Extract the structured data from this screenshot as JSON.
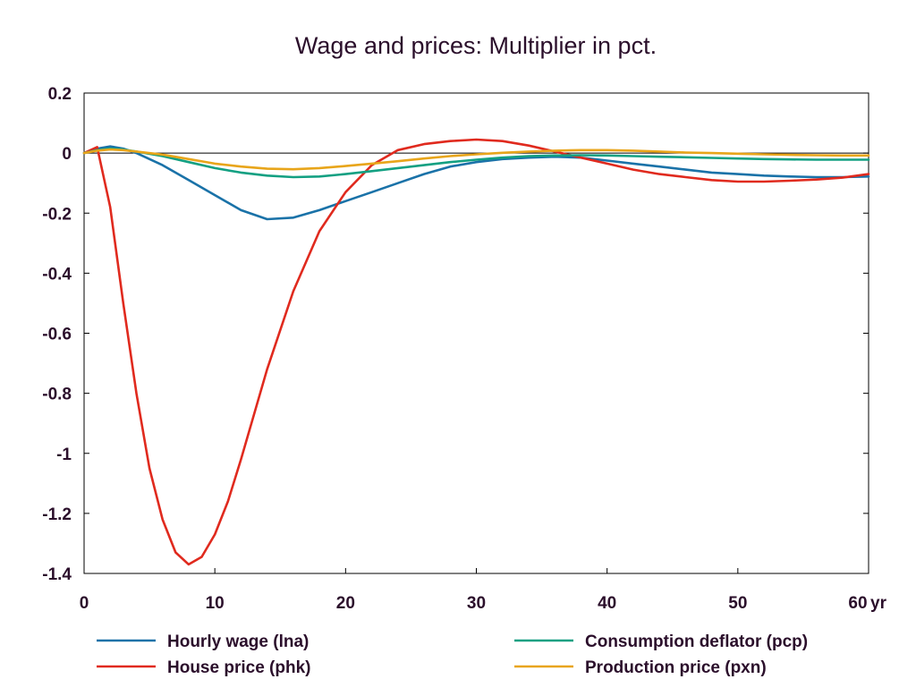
{
  "chart_data": {
    "type": "line",
    "title": "Wage and prices: Multiplier in pct.",
    "xlabel": "",
    "ylabel": "",
    "x_unit": "yr",
    "xlim": [
      0,
      60
    ],
    "ylim": [
      -1.4,
      0.2
    ],
    "xticks": [
      0,
      10,
      20,
      30,
      40,
      50,
      60
    ],
    "yticks": [
      0.2,
      0,
      -0.2,
      -0.4,
      -0.6,
      -0.8,
      -1,
      -1.2,
      -1.4
    ],
    "grid": false,
    "zero_line": true,
    "legend_position": "bottom",
    "series": [
      {
        "name": "Hourly wage (lna)",
        "color": "#1a72a8",
        "points": [
          [
            0,
            0
          ],
          [
            1,
            0.015
          ],
          [
            2,
            0.022
          ],
          [
            3,
            0.015
          ],
          [
            4,
            0
          ],
          [
            6,
            -0.04
          ],
          [
            8,
            -0.09
          ],
          [
            10,
            -0.14
          ],
          [
            12,
            -0.19
          ],
          [
            14,
            -0.22
          ],
          [
            16,
            -0.215
          ],
          [
            18,
            -0.19
          ],
          [
            20,
            -0.16
          ],
          [
            22,
            -0.13
          ],
          [
            24,
            -0.1
          ],
          [
            26,
            -0.07
          ],
          [
            28,
            -0.045
          ],
          [
            30,
            -0.03
          ],
          [
            32,
            -0.02
          ],
          [
            34,
            -0.015
          ],
          [
            36,
            -0.012
          ],
          [
            38,
            -0.015
          ],
          [
            40,
            -0.025
          ],
          [
            42,
            -0.035
          ],
          [
            44,
            -0.045
          ],
          [
            46,
            -0.055
          ],
          [
            48,
            -0.065
          ],
          [
            50,
            -0.07
          ],
          [
            52,
            -0.075
          ],
          [
            54,
            -0.078
          ],
          [
            56,
            -0.08
          ],
          [
            58,
            -0.08
          ],
          [
            60,
            -0.078
          ]
        ]
      },
      {
        "name": "House price (phk)",
        "color": "#e02a1e",
        "points": [
          [
            0,
            0
          ],
          [
            1,
            0.02
          ],
          [
            2,
            -0.18
          ],
          [
            3,
            -0.5
          ],
          [
            4,
            -0.8
          ],
          [
            5,
            -1.05
          ],
          [
            6,
            -1.22
          ],
          [
            7,
            -1.33
          ],
          [
            8,
            -1.37
          ],
          [
            9,
            -1.345
          ],
          [
            10,
            -1.27
          ],
          [
            11,
            -1.16
          ],
          [
            12,
            -1.02
          ],
          [
            14,
            -0.72
          ],
          [
            16,
            -0.46
          ],
          [
            18,
            -0.26
          ],
          [
            20,
            -0.13
          ],
          [
            22,
            -0.04
          ],
          [
            24,
            0.01
          ],
          [
            26,
            0.03
          ],
          [
            28,
            0.04
          ],
          [
            30,
            0.045
          ],
          [
            32,
            0.04
          ],
          [
            34,
            0.025
          ],
          [
            36,
            0.005
          ],
          [
            38,
            -0.015
          ],
          [
            40,
            -0.035
          ],
          [
            42,
            -0.055
          ],
          [
            44,
            -0.07
          ],
          [
            46,
            -0.08
          ],
          [
            48,
            -0.09
          ],
          [
            50,
            -0.095
          ],
          [
            52,
            -0.095
          ],
          [
            54,
            -0.092
          ],
          [
            56,
            -0.088
          ],
          [
            58,
            -0.082
          ],
          [
            60,
            -0.07
          ]
        ]
      },
      {
        "name": "Consumption deflator (pcp)",
        "color": "#13a082",
        "points": [
          [
            0,
            0
          ],
          [
            1,
            0.01
          ],
          [
            2,
            0.015
          ],
          [
            3,
            0.012
          ],
          [
            4,
            0.005
          ],
          [
            6,
            -0.01
          ],
          [
            8,
            -0.03
          ],
          [
            10,
            -0.05
          ],
          [
            12,
            -0.065
          ],
          [
            14,
            -0.075
          ],
          [
            16,
            -0.08
          ],
          [
            18,
            -0.078
          ],
          [
            20,
            -0.07
          ],
          [
            22,
            -0.06
          ],
          [
            24,
            -0.05
          ],
          [
            26,
            -0.04
          ],
          [
            28,
            -0.03
          ],
          [
            30,
            -0.022
          ],
          [
            32,
            -0.015
          ],
          [
            34,
            -0.01
          ],
          [
            36,
            -0.008
          ],
          [
            38,
            -0.007
          ],
          [
            40,
            -0.008
          ],
          [
            42,
            -0.01
          ],
          [
            44,
            -0.012
          ],
          [
            46,
            -0.014
          ],
          [
            48,
            -0.016
          ],
          [
            50,
            -0.018
          ],
          [
            52,
            -0.02
          ],
          [
            54,
            -0.021
          ],
          [
            56,
            -0.022
          ],
          [
            58,
            -0.022
          ],
          [
            60,
            -0.022
          ]
        ]
      },
      {
        "name": "Production price (pxn)",
        "color": "#e8a51a",
        "points": [
          [
            0,
            0
          ],
          [
            1,
            0.008
          ],
          [
            2,
            0.012
          ],
          [
            3,
            0.01
          ],
          [
            4,
            0.005
          ],
          [
            6,
            -0.005
          ],
          [
            8,
            -0.02
          ],
          [
            10,
            -0.035
          ],
          [
            12,
            -0.045
          ],
          [
            14,
            -0.052
          ],
          [
            16,
            -0.054
          ],
          [
            18,
            -0.05
          ],
          [
            20,
            -0.043
          ],
          [
            22,
            -0.035
          ],
          [
            24,
            -0.027
          ],
          [
            26,
            -0.018
          ],
          [
            28,
            -0.01
          ],
          [
            30,
            -0.004
          ],
          [
            32,
            0.001
          ],
          [
            34,
            0.005
          ],
          [
            36,
            0.008
          ],
          [
            38,
            0.01
          ],
          [
            40,
            0.01
          ],
          [
            42,
            0.008
          ],
          [
            44,
            0.005
          ],
          [
            46,
            0.002
          ],
          [
            48,
            0
          ],
          [
            50,
            -0.002
          ],
          [
            52,
            -0.004
          ],
          [
            54,
            -0.006
          ],
          [
            56,
            -0.007
          ],
          [
            58,
            -0.008
          ],
          [
            60,
            -0.008
          ]
        ]
      }
    ]
  }
}
